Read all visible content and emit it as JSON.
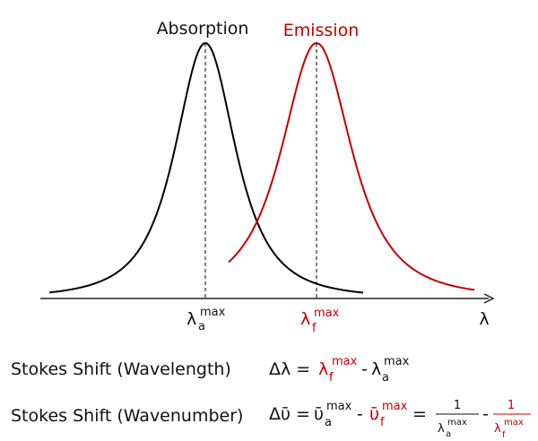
{
  "diagram": {
    "curves": [
      {
        "label": "Absorption"
      },
      {
        "label": "Emission"
      }
    ],
    "axis_label": "λ",
    "peak_labels": [
      {
        "base": "λ",
        "sub": "a",
        "sup": "max"
      },
      {
        "base": "λ",
        "sub": "f",
        "sup": "max"
      }
    ]
  },
  "equations": [
    {
      "name": "Stokes Shift (Wavelength)",
      "lhs": "Δλ =",
      "term1": {
        "base": "λ",
        "sub": "f",
        "sup": "max"
      },
      "op1": "-",
      "term2": {
        "base": "λ",
        "sub": "a",
        "sup": "max"
      }
    },
    {
      "name": "Stokes Shift (Wavenumber)",
      "lhs": "Δῡ =",
      "term1": {
        "base": "ῡ",
        "sub": "a",
        "sup": "max"
      },
      "op1": "-",
      "term2": {
        "base": "ῡ",
        "sub": "f",
        "sup": "max"
      },
      "op2": "=",
      "frac1": {
        "num": "1",
        "base": "λ",
        "sub": "a",
        "sup": "max"
      },
      "op3": "-",
      "frac2": {
        "num": "1",
        "base": "λ",
        "sub": "f",
        "sup": "max"
      }
    }
  ]
}
